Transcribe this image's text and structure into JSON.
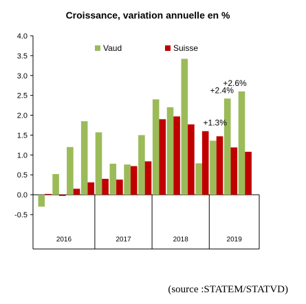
{
  "chart_data": {
    "type": "bar",
    "title": "Croissance, variation annuelle en %",
    "xlabel": "",
    "ylabel": "",
    "ylim": [
      -0.5,
      4.0
    ],
    "yticks": [
      4.0,
      3.5,
      3.0,
      2.5,
      2.0,
      1.5,
      1.0,
      0.5,
      0.0,
      -0.5
    ],
    "grid": false,
    "legend_position": "top",
    "years": [
      "2016",
      "2017",
      "2018",
      "2019"
    ],
    "quarters_per_year": 4,
    "series": [
      {
        "name": "Vaud",
        "color": "#9bbb59",
        "values": [
          -0.3,
          0.52,
          1.2,
          1.85,
          1.57,
          0.78,
          0.76,
          1.5,
          2.4,
          2.2,
          3.42,
          0.79,
          1.36,
          2.42,
          2.6
        ]
      },
      {
        "name": "Suisse",
        "color": "#c00000",
        "values": [
          0.02,
          -0.03,
          0.15,
          0.31,
          0.4,
          0.38,
          0.72,
          0.84,
          1.9,
          1.97,
          1.77,
          1.6,
          1.47,
          1.19,
          1.08
        ]
      }
    ],
    "annotations": [
      {
        "text": "+1.3%",
        "near_value": 1.6
      },
      {
        "text": "+2.4%",
        "near_value": 2.42
      },
      {
        "text": "+2.6%",
        "near_value": 2.6
      }
    ]
  },
  "source_note": "(source :STATEM/STATVD)"
}
